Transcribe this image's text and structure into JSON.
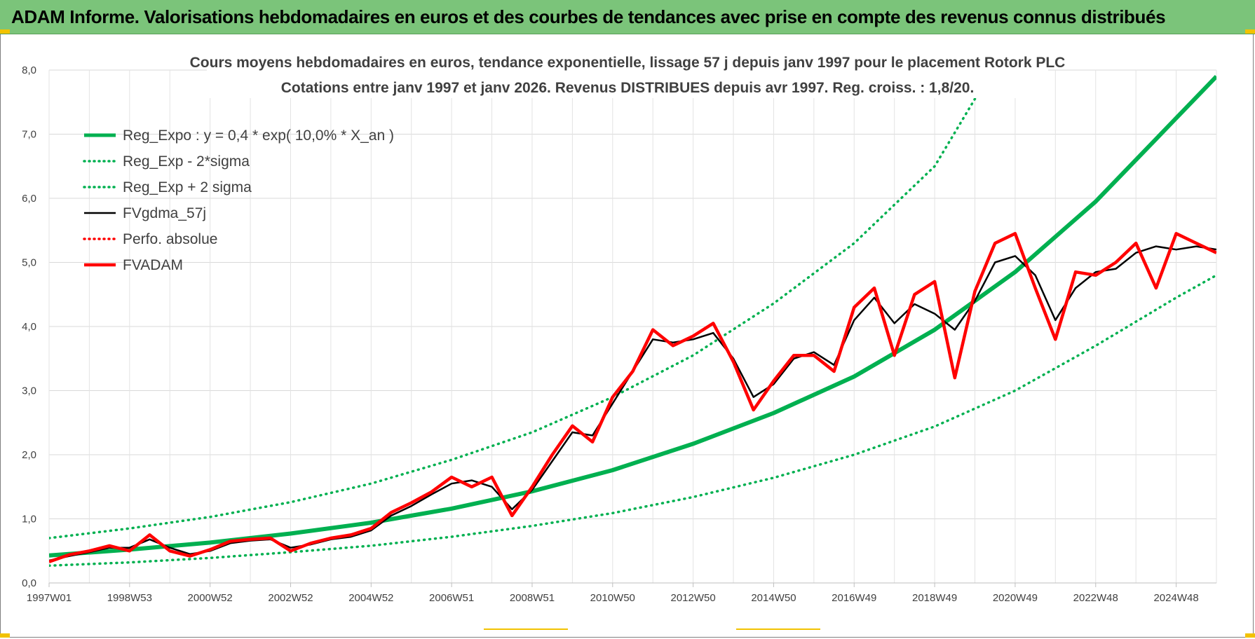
{
  "banner": {
    "title": "ADAM Informe. Valorisations hebdomadaires en euros et des courbes de tendances avec prise en compte des revenus connus distribués",
    "color": "#7bc47a"
  },
  "chart_data": {
    "type": "line",
    "title": "Cours moyens hebdomadaires en euros, tendance exponentielle, lissage 57 j depuis janv 1997  pour le placement Rotork PLC",
    "subtitle": "Cotations entre janv 1997 et janv 2026. Revenus DISTRIBUES depuis avr 1997. Reg. croiss. : 1,8/20.",
    "x_tick_labels": [
      "1997W01",
      "1998W53",
      "2000W52",
      "2002W52",
      "2004W52",
      "2006W51",
      "2008W51",
      "2010W50",
      "2012W50",
      "2014W50",
      "2016W49",
      "2018W49",
      "2020W49",
      "2022W48",
      "2024W48"
    ],
    "x_tick_years": [
      1997.0,
      1999.0,
      2001.0,
      2003.0,
      2005.0,
      2007.0,
      2009.0,
      2011.0,
      2013.0,
      2015.0,
      2017.0,
      2019.0,
      2021.0,
      2023.0,
      2025.0
    ],
    "x_range": [
      1997.0,
      2026.0
    ],
    "y_range": [
      0,
      8
    ],
    "y_tick_values": [
      0,
      1,
      2,
      3,
      4,
      5,
      6,
      7,
      8
    ],
    "y_tick_labels": [
      "0,0",
      "1,0",
      "2,0",
      "3,0",
      "4,0",
      "5,0",
      "6,0",
      "7,0",
      "8,0"
    ],
    "grid": true,
    "legend_position": "top-left",
    "series": [
      {
        "name": "Reg_Expo : y = 0,4 * exp( 10,0% *  X_an )",
        "style": "solid",
        "color": "#00b050",
        "x": [
          1997,
          1999,
          2001,
          2003,
          2005,
          2007,
          2009,
          2011,
          2013,
          2015,
          2017,
          2019,
          2021,
          2023,
          2025,
          2026
        ],
        "y": [
          0.43,
          0.52,
          0.63,
          0.77,
          0.94,
          1.16,
          1.43,
          1.76,
          2.17,
          2.65,
          3.22,
          3.95,
          4.85,
          5.95,
          7.25,
          7.9
        ]
      },
      {
        "name": "Reg_Exp - 2*sigma",
        "style": "dotted",
        "color": "#00b050",
        "x": [
          1997,
          1999,
          2001,
          2003,
          2005,
          2007,
          2009,
          2011,
          2013,
          2015,
          2017,
          2019,
          2021,
          2023,
          2025,
          2026
        ],
        "y": [
          0.27,
          0.32,
          0.39,
          0.48,
          0.58,
          0.72,
          0.89,
          1.09,
          1.34,
          1.64,
          2.0,
          2.44,
          3.0,
          3.7,
          4.45,
          4.8
        ]
      },
      {
        "name": "Reg_Exp + 2 sigma",
        "style": "dotted",
        "color": "#00b050",
        "x": [
          1997,
          1999,
          2001,
          2003,
          2005,
          2007,
          2009,
          2011,
          2013,
          2015,
          2017,
          2019,
          2020
        ],
        "y": [
          0.7,
          0.85,
          1.03,
          1.26,
          1.55,
          1.92,
          2.35,
          2.9,
          3.55,
          4.36,
          5.3,
          6.5,
          7.55
        ]
      },
      {
        "name": "FVgdma_57j",
        "style": "solid",
        "color": "#000000",
        "x": [
          1997,
          1997.5,
          1998,
          1998.5,
          1999,
          1999.5,
          2000,
          2000.5,
          2001,
          2001.5,
          2002,
          2002.5,
          2003,
          2003.5,
          2004,
          2004.5,
          2005,
          2005.5,
          2006,
          2006.5,
          2007,
          2007.5,
          2008,
          2008.5,
          2009,
          2009.5,
          2010,
          2010.5,
          2011,
          2011.5,
          2012,
          2012.5,
          2013,
          2013.5,
          2014,
          2014.5,
          2015,
          2015.5,
          2016,
          2016.5,
          2017,
          2017.5,
          2018,
          2018.5,
          2019,
          2019.5,
          2020,
          2020.5,
          2021,
          2021.5,
          2022,
          2022.5,
          2023,
          2023.5,
          2024,
          2024.5,
          2025,
          2025.5,
          2026
        ],
        "y": [
          0.35,
          0.42,
          0.48,
          0.55,
          0.55,
          0.68,
          0.55,
          0.45,
          0.5,
          0.62,
          0.66,
          0.68,
          0.55,
          0.6,
          0.68,
          0.72,
          0.82,
          1.05,
          1.2,
          1.38,
          1.55,
          1.6,
          1.5,
          1.15,
          1.45,
          1.9,
          2.35,
          2.3,
          2.8,
          3.3,
          3.8,
          3.75,
          3.8,
          3.9,
          3.5,
          2.9,
          3.1,
          3.5,
          3.6,
          3.4,
          4.1,
          4.45,
          4.05,
          4.35,
          4.2,
          3.95,
          4.4,
          5.0,
          5.1,
          4.8,
          4.1,
          4.6,
          4.85,
          4.9,
          5.15,
          5.25,
          5.2,
          5.25,
          5.2
        ]
      },
      {
        "name": "Perfo. absolue",
        "style": "dotted",
        "color": "#ff0000",
        "x": [],
        "y": []
      },
      {
        "name": "FVADAM",
        "style": "solid",
        "color": "#ff0000",
        "x": [
          1997,
          1997.5,
          1998,
          1998.5,
          1999,
          1999.5,
          2000,
          2000.5,
          2001,
          2001.5,
          2002,
          2002.5,
          2003,
          2003.5,
          2004,
          2004.5,
          2005,
          2005.5,
          2006,
          2006.5,
          2007,
          2007.5,
          2008,
          2008.5,
          2009,
          2009.5,
          2010,
          2010.5,
          2011,
          2011.5,
          2012,
          2012.5,
          2013,
          2013.5,
          2014,
          2014.5,
          2015,
          2015.5,
          2016,
          2016.5,
          2017,
          2017.5,
          2018,
          2018.5,
          2019,
          2019.5,
          2020,
          2020.5,
          2021,
          2021.5,
          2022,
          2022.5,
          2023,
          2023.5,
          2024,
          2024.5,
          2025,
          2025.5,
          2026
        ],
        "y": [
          0.33,
          0.44,
          0.5,
          0.58,
          0.5,
          0.75,
          0.5,
          0.42,
          0.52,
          0.65,
          0.68,
          0.7,
          0.5,
          0.62,
          0.7,
          0.75,
          0.85,
          1.1,
          1.25,
          1.42,
          1.65,
          1.5,
          1.65,
          1.05,
          1.5,
          2.0,
          2.45,
          2.2,
          2.9,
          3.3,
          3.95,
          3.7,
          3.85,
          4.05,
          3.45,
          2.7,
          3.15,
          3.55,
          3.55,
          3.3,
          4.3,
          4.6,
          3.55,
          4.5,
          4.7,
          3.2,
          4.55,
          5.3,
          5.45,
          4.6,
          3.8,
          4.85,
          4.8,
          5.0,
          5.3,
          4.6,
          5.45,
          5.3,
          5.15
        ]
      }
    ]
  }
}
